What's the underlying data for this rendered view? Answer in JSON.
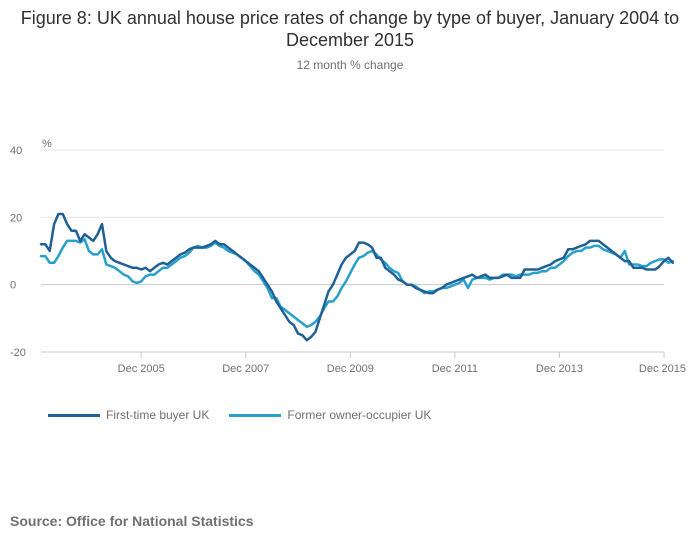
{
  "chart_data": {
    "type": "line",
    "title": "Figure 8: UK annual house price rates of change by type of buyer, January 2004 to December 2015",
    "subtitle": "12 month % change",
    "ylabel": "%",
    "xlabel": "",
    "ylim": [
      -20,
      40
    ],
    "yticks": [
      -20,
      0,
      20,
      40
    ],
    "xlim": [
      0,
      143
    ],
    "xticks": [
      {
        "label": "Dec 2005",
        "index": 23
      },
      {
        "label": "Dec 2007",
        "index": 47
      },
      {
        "label": "Dec 2009",
        "index": 71
      },
      {
        "label": "Dec 2011",
        "index": 95
      },
      {
        "label": "Dec 2013",
        "index": 119
      },
      {
        "label": "Dec 2015",
        "index": 143
      }
    ],
    "x_start": "Jan 2004",
    "x_end": "Dec 2015",
    "grid": true,
    "legend_position": "bottom-left",
    "series": [
      {
        "name": "First-time buyer UK",
        "color": "#206095",
        "values": [
          12,
          12,
          10,
          18,
          21,
          21,
          18,
          16,
          16,
          13,
          15,
          14,
          13,
          15,
          18,
          10,
          8,
          7,
          6.5,
          6,
          5.5,
          5,
          5,
          4.5,
          5,
          4,
          5,
          6,
          6.5,
          6,
          7,
          8,
          9,
          9.5,
          10.5,
          11,
          11,
          11,
          11.5,
          12,
          13,
          12,
          12,
          11,
          10,
          9,
          8,
          7,
          6,
          5,
          4,
          2,
          0,
          -2,
          -5,
          -7,
          -9,
          -11,
          -12,
          -14.5,
          -15,
          -16.5,
          -15.5,
          -14,
          -10,
          -6,
          -2,
          0,
          3,
          6,
          8,
          9,
          10,
          12.5,
          12.5,
          12,
          11,
          8,
          8,
          5,
          4,
          3,
          1.5,
          1,
          0,
          0,
          -1,
          -1.5,
          -2,
          -2.5,
          -2.5,
          -1.5,
          -1,
          0,
          0.5,
          1,
          1.5,
          2,
          2.5,
          3,
          2,
          2.5,
          3,
          2,
          2,
          2,
          2.5,
          3,
          2,
          2,
          2,
          4.5,
          4.5,
          4.5,
          4.5,
          5,
          5.5,
          6,
          7,
          7.5,
          8,
          10.5,
          10.5,
          11,
          11.5,
          12,
          13,
          13,
          13,
          12,
          11,
          10,
          9,
          8,
          7,
          7,
          5,
          5,
          5,
          4.5,
          4.5,
          4.5,
          5.5,
          7,
          8,
          6.5
        ]
      },
      {
        "name": "Former owner-occupier UK",
        "color": "#27A0CC",
        "values": [
          8.5,
          8.5,
          6.5,
          6.5,
          8.5,
          11,
          13,
          13,
          13,
          12.5,
          13.5,
          10,
          9,
          9,
          10.5,
          6,
          5.5,
          5,
          4,
          3,
          2.5,
          1,
          0.5,
          1,
          2.5,
          3,
          3,
          4,
          5,
          5,
          6,
          7,
          8,
          8.5,
          9.5,
          11,
          11.5,
          11,
          11,
          11.5,
          12.5,
          11.5,
          11,
          10,
          9.5,
          9,
          8,
          7,
          5.5,
          4,
          3,
          1,
          -1,
          -4,
          -4,
          -6.5,
          -7.5,
          -8.5,
          -9.5,
          -10.5,
          -11.5,
          -12.5,
          -12,
          -11,
          -9.5,
          -7,
          -5,
          -5,
          -3.5,
          -1,
          1,
          3.5,
          6,
          8,
          8.5,
          9.5,
          10,
          9,
          7.5,
          6.5,
          5,
          4,
          3.5,
          1,
          0,
          0,
          -0.5,
          -1.5,
          -2.5,
          -2,
          -2,
          -1.5,
          -1,
          -1,
          -0.5,
          0,
          0.5,
          1.5,
          -1,
          1.5,
          2,
          2,
          2,
          1.5,
          2,
          2,
          3,
          3,
          3,
          2.5,
          3,
          3,
          3,
          3.5,
          3.5,
          4,
          4,
          5,
          5,
          6,
          7,
          8.5,
          9.5,
          10,
          10,
          11,
          11,
          11.5,
          11.5,
          10.5,
          10,
          9.5,
          9,
          8,
          10,
          6,
          6,
          6,
          5.5,
          5.5,
          6.5,
          7,
          7.5,
          7.5,
          6.5,
          7
        ]
      }
    ]
  },
  "source_text": "Source: Office for National Statistics"
}
